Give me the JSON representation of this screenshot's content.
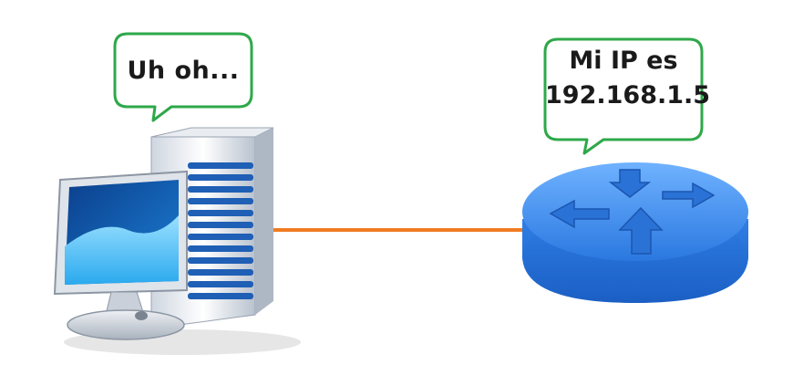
{
  "computer_bubble": {
    "text": "Uh oh..."
  },
  "router_bubble": {
    "line1": "Mi IP es",
    "line2": "192.168.1.5"
  },
  "colors": {
    "bubble_border": "#2ea84a",
    "link_line": "#f07c22",
    "router_blue": "#2f7fe6",
    "server_blue": "#1f5fb5",
    "monitor_screen": "#29a3e8"
  },
  "icons": [
    "computer-server-icon",
    "router-icon"
  ]
}
